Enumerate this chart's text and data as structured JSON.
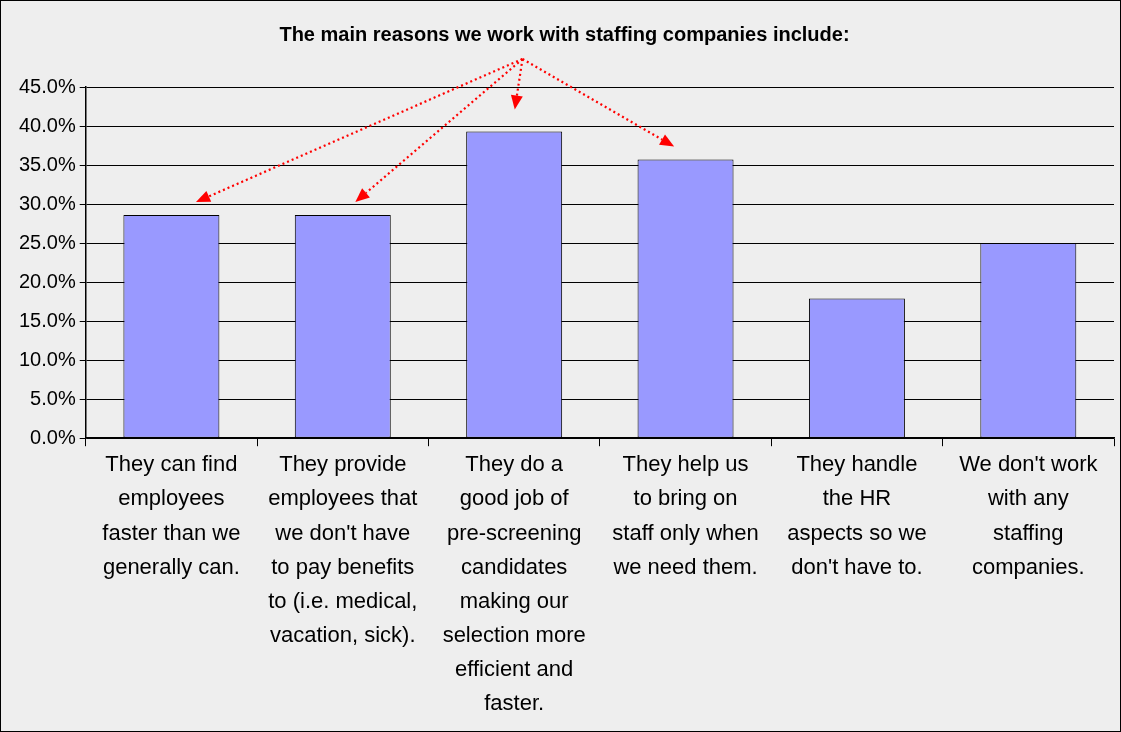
{
  "chart_data": {
    "type": "bar",
    "title": "The main reasons we work with staffing companies include:",
    "categories": [
      "They can find employees faster than we generally can.",
      "They provide employees that we don't have to pay benefits to (i.e. medical, vacation, sick).",
      "They do a good job of pre-screening candidates making our selection more efficient and faster.",
      "They help us to bring on staff only when we need them.",
      "They handle the HR aspects so we don't have to.",
      "We don't work with any staffing companies."
    ],
    "values": [
      28.6,
      28.6,
      39.3,
      35.7,
      17.9,
      25.0
    ],
    "color": "#9999ff",
    "ylim": [
      0,
      45
    ],
    "yticks": [
      {
        "value": 0,
        "label": "0.0%"
      },
      {
        "value": 5,
        "label": "5.0%"
      },
      {
        "value": 10,
        "label": "10.0%"
      },
      {
        "value": 15,
        "label": "15.0%"
      },
      {
        "value": 20,
        "label": "20.0%"
      },
      {
        "value": 25,
        "label": "25.0%"
      },
      {
        "value": 30,
        "label": "30.0%"
      },
      {
        "value": 35,
        "label": "35.0%"
      },
      {
        "value": 40,
        "label": "40.0%"
      },
      {
        "value": 45,
        "label": "45.0%"
      }
    ],
    "grid": "y",
    "legend": false
  }
}
